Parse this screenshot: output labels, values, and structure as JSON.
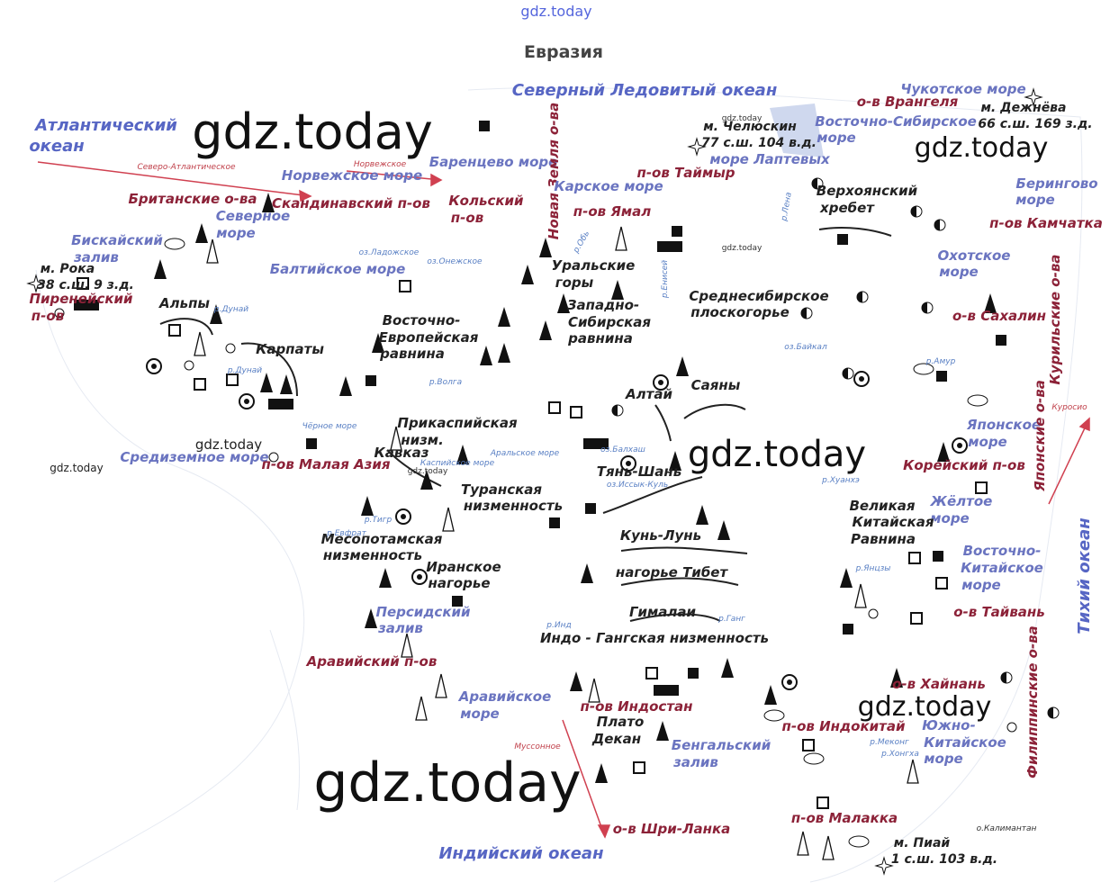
{
  "title": "Евразия",
  "watermarks": [
    "gdz.today",
    "gdz.today",
    "gdz.today",
    "gdz.today",
    "gdz.today",
    "gdz.today",
    "gdz.today",
    "gdz.today",
    "gdz.today",
    "gdz.today",
    "gdz.today"
  ],
  "labels": [
    "Северный Ледовитый океан",
    "Атлантический",
    "океан",
    "Северо-Атлантическое",
    "Норвежское",
    "Норвежское море",
    "Баренцево море",
    "Британские о-ва",
    "Скандинавский п-ов",
    "Кольский",
    "п-ов",
    "Северное",
    "море",
    "Бискайский",
    "залив",
    "м. Рока",
    "38 с.ш. 9 з.д.",
    "Пиренейский",
    "п-ов",
    "оз.Ладожское",
    "оз.Онежское",
    "Балтийское море",
    "Альпы",
    "р.Дунай",
    "Карпаты",
    "р.Дунай",
    "Восточно-",
    "Европейская",
    "равнина",
    "р.Волга",
    "Новая Земля о-ва",
    "Карское море",
    "п-ов Ямал",
    "р.Обь",
    "Уральские",
    "горы",
    "Западно-",
    "Сибирская",
    "равнина",
    "р.Енисей",
    "м. Челюскин",
    "77 с.ш. 104 в.д.",
    "море Лаптевых",
    "п-ов Таймыр",
    "Чукотское море",
    "о-в Врангеля",
    "м. Дежнёва",
    "66 с.ш. 169 з.д.",
    "Восточно-Сибирское",
    "море",
    "р.Лена",
    "Верхоянский",
    "хребет",
    "Берингово",
    "море",
    "п-ов Камчатка",
    "Среднесибирское",
    "плоскогорье",
    "Охотское",
    "море",
    "о-в Сахалин",
    "Курильские о-ва",
    "оз.Байкал",
    "р.Амур",
    "Алтай",
    "Саяны",
    "Чёрное море",
    "Прикаспийская",
    "низм.",
    "Кавказ",
    "Каспийское море",
    "Аральское море",
    "оз.Балхаш",
    "Тянь-Шань",
    "оз.Иссык-Куль",
    "Средиземное море",
    "п-ов Малая Азия",
    "Туранская",
    "низменность",
    "р.Хуанхэ",
    "Японское",
    "море",
    "Японские о-ва",
    "Куросио",
    "Корейский п-ов",
    "Жёлтое",
    "море",
    "Великая",
    "Китайская",
    "Равнина",
    "Тихий океан",
    "Восточно-",
    "Китайское",
    "море",
    "р.Тигр",
    "р.Евфрат",
    "Месопотамская",
    "низменность",
    "Иранское",
    "нагорье",
    "Кунь-Лунь",
    "нагорье Тибет",
    "р.Янцзы",
    "Персидский",
    "залив",
    "Гималаи",
    "р.Ганг",
    "р.Инд",
    "Индо - Гангская низменность",
    "о-в Тайвань",
    "Аравийский п-ов",
    "Аравийское",
    "море",
    "п-ов Индостан",
    "Плато",
    "Декан",
    "Бенгальский",
    "залив",
    "Муссонное",
    "о-в Хайнань",
    "Филиппинские о-ва",
    "п-ов Индокитай",
    "Южно-",
    "Китайское",
    "море",
    "р.Меконг",
    "р.Хонгха",
    "о-в Шри-Ланка",
    "Индийский океан",
    "п-ов Малакка",
    "о.Калимантан",
    "м. Пиай",
    "1 с.ш. 103 в.д."
  ]
}
